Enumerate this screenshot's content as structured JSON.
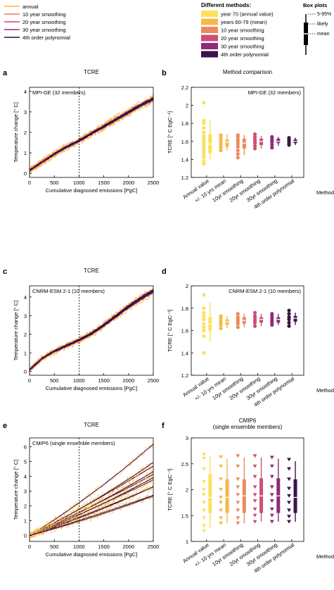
{
  "legend_top": {
    "items": [
      {
        "label": "annual",
        "color": "#f5b942"
      },
      {
        "label": "10 year smoothing",
        "color": "#e8795a"
      },
      {
        "label": "20 year smoothing",
        "color": "#c9467a"
      },
      {
        "label": "30 year smoothing",
        "color": "#8e2a87"
      },
      {
        "label": "4th order polynomial",
        "color": "#2a1145"
      }
    ]
  },
  "legend_methods": {
    "title": "Different methods:",
    "items": [
      {
        "label": "year 70 (annual value)",
        "color": "#fae25a"
      },
      {
        "label": "years 60-79 (mean)",
        "color": "#f4b94a"
      },
      {
        "label": "10 year smoothing",
        "color": "#ec8a5c"
      },
      {
        "label": "20 year smoothing",
        "color": "#cc4f78"
      },
      {
        "label": "30 year smoothing",
        "color": "#8e2b7a"
      },
      {
        "label": "4th order polynomial",
        "color": "#3a1448"
      }
    ]
  },
  "box_legend": {
    "title": "Box plots",
    "range_label": "5-95%",
    "likely_label": "likely",
    "mean_label": "mean"
  },
  "chart_data": [
    {
      "panel": "a",
      "type": "line",
      "title": "TCRE",
      "inset": "MPI-GE (32 members)",
      "xlabel": "Cumulative diagnosed emissions [PgC]",
      "ylabel": "Temperature change [° C]",
      "xlim": [
        0,
        2500
      ],
      "ylim": [
        -0.2,
        4.2
      ],
      "xticks": [
        0,
        500,
        1000,
        1500,
        2000,
        2500
      ],
      "yticks": [
        0,
        1,
        2,
        3,
        4
      ],
      "vline": 1000,
      "x": [
        0,
        250,
        500,
        750,
        1000,
        1250,
        1500,
        1750,
        2000,
        2250,
        2500
      ],
      "series": [
        {
          "name": "4th order polynomial",
          "values": [
            0.15,
            0.55,
            0.95,
            1.3,
            1.6,
            1.95,
            2.3,
            2.65,
            3.0,
            3.35,
            3.65
          ]
        }
      ],
      "spread": 0.18,
      "n_members": 8
    },
    {
      "panel": "b",
      "type": "box",
      "title": "Method comparison",
      "inset": "MPI-GE (32 members)",
      "ylabel": "TCRE [° C EgC⁻¹]",
      "xlabel": "Method",
      "ylim": [
        1.2,
        2.2
      ],
      "yticks": [
        1.2,
        1.4,
        1.6,
        1.8,
        2.0,
        2.2
      ],
      "categories": [
        "Annual value",
        "+/- 10 yrs mean",
        "10yr smoothing",
        "20yr smoothing",
        "30yr smoothing",
        "4th order polynomial"
      ],
      "marker": "circle",
      "boxes": [
        {
          "p5": 1.4,
          "q1": 1.47,
          "mean": 1.57,
          "q3": 1.68,
          "p95": 1.84,
          "points": [
            1.35,
            1.38,
            1.42,
            1.45,
            1.48,
            1.5,
            1.52,
            1.55,
            1.58,
            1.6,
            1.63,
            1.66,
            1.7,
            1.75,
            1.8,
            1.83,
            2.03
          ]
        },
        {
          "p5": 1.5,
          "q1": 1.54,
          "mean": 1.59,
          "q3": 1.62,
          "p95": 1.68,
          "points": [
            1.5,
            1.53,
            1.56,
            1.58,
            1.6,
            1.62,
            1.65,
            1.67
          ]
        },
        {
          "p5": 1.45,
          "q1": 1.52,
          "mean": 1.58,
          "q3": 1.63,
          "p95": 1.67,
          "points": [
            1.42,
            1.46,
            1.5,
            1.54,
            1.57,
            1.6,
            1.62,
            1.65,
            1.67
          ]
        },
        {
          "p5": 1.52,
          "q1": 1.56,
          "mean": 1.6,
          "q3": 1.63,
          "p95": 1.66,
          "points": [
            1.52,
            1.55,
            1.58,
            1.6,
            1.62,
            1.65,
            1.68
          ]
        },
        {
          "p5": 1.55,
          "q1": 1.58,
          "mean": 1.6,
          "q3": 1.63,
          "p95": 1.65,
          "points": [
            1.53,
            1.56,
            1.59,
            1.61,
            1.63,
            1.65
          ]
        },
        {
          "p5": 1.56,
          "q1": 1.58,
          "mean": 1.6,
          "q3": 1.62,
          "p95": 1.64,
          "points": [
            1.56,
            1.58,
            1.6,
            1.62,
            1.64
          ]
        }
      ]
    },
    {
      "panel": "c",
      "type": "line",
      "title": "TCRE",
      "inset": "CNRM-ESM 2-1 (10 members)",
      "xlabel": "Cumulative diagnosed emissions [PgC]",
      "ylabel": "Temperature change [° C]",
      "xlim": [
        0,
        2500
      ],
      "ylim": [
        -0.2,
        4.6
      ],
      "xticks": [
        0,
        500,
        1000,
        1500,
        2000,
        2500
      ],
      "yticks": [
        0,
        1,
        2,
        3,
        4
      ],
      "vline": 1000,
      "x": [
        0,
        250,
        500,
        750,
        1000,
        1250,
        1500,
        1750,
        2000,
        2250,
        2500
      ],
      "series": [
        {
          "name": "4th order polynomial",
          "values": [
            0.1,
            0.7,
            1.1,
            1.4,
            1.7,
            2.05,
            2.5,
            3.0,
            3.5,
            3.95,
            4.35
          ]
        }
      ],
      "spread": 0.22,
      "n_members": 6
    },
    {
      "panel": "d",
      "type": "box",
      "title": "",
      "inset": "CNRM-ESM 2-1 (10 members)",
      "ylabel": "TCRE [° C EgC⁻¹]",
      "xlabel": "Method",
      "ylim": [
        1.2,
        2.0
      ],
      "yticks": [
        1.2,
        1.4,
        1.6,
        1.8,
        2.0
      ],
      "categories": [
        "Annual value",
        "+/- 10 yrs mean",
        "10yr smoothing",
        "20yr smoothing",
        "30yr smoothing",
        "4th order polynomial"
      ],
      "marker": "circle",
      "boxes": [
        {
          "p5": 1.5,
          "q1": 1.6,
          "mean": 1.66,
          "q3": 1.72,
          "p95": 1.85,
          "points": [
            1.4,
            1.55,
            1.6,
            1.63,
            1.66,
            1.7,
            1.73,
            1.76,
            1.8,
            1.92
          ]
        },
        {
          "p5": 1.62,
          "q1": 1.65,
          "mean": 1.68,
          "q3": 1.7,
          "p95": 1.73,
          "points": [
            1.62,
            1.65,
            1.67,
            1.69,
            1.71,
            1.73
          ]
        },
        {
          "p5": 1.63,
          "q1": 1.66,
          "mean": 1.69,
          "q3": 1.72,
          "p95": 1.75,
          "points": [
            1.63,
            1.66,
            1.68,
            1.7,
            1.72,
            1.75
          ]
        },
        {
          "p5": 1.64,
          "q1": 1.67,
          "mean": 1.7,
          "q3": 1.72,
          "p95": 1.75,
          "points": [
            1.64,
            1.67,
            1.69,
            1.71,
            1.73,
            1.76
          ]
        },
        {
          "p5": 1.65,
          "q1": 1.67,
          "mean": 1.7,
          "q3": 1.72,
          "p95": 1.75,
          "points": [
            1.65,
            1.67,
            1.69,
            1.71,
            1.73,
            1.75
          ]
        },
        {
          "p5": 1.65,
          "q1": 1.68,
          "mean": 1.71,
          "q3": 1.73,
          "p95": 1.76,
          "points": [
            1.64,
            1.67,
            1.7,
            1.72,
            1.75,
            1.78
          ]
        }
      ]
    },
    {
      "panel": "e",
      "type": "line",
      "title": "TCRE",
      "inset": "CMIP6   (single ensemble members)",
      "xlabel": "Cumulative diagnosed emissions [PgC]",
      "ylabel": "Temperature change [° C]",
      "xlim": [
        0,
        2500
      ],
      "ylim": [
        -0.4,
        6.6
      ],
      "xticks": [
        0,
        500,
        1000,
        1500,
        2000,
        2500
      ],
      "yticks": [
        0,
        1,
        2,
        3,
        4,
        5,
        6
      ],
      "vline": 1000,
      "x": [
        0,
        250,
        500,
        750,
        1000,
        1250,
        1500,
        1750,
        2000,
        2250,
        2500
      ],
      "models_end": [
        6.0,
        5.0,
        4.8,
        4.4,
        4.2,
        4.0,
        3.8,
        3.5,
        3.2,
        2.9,
        2.6
      ],
      "spread": 0.12
    },
    {
      "panel": "f",
      "type": "box",
      "title": "CMIP6\n(single ensemble members)",
      "inset": "",
      "ylabel": "TCRE [° C EgC⁻¹]",
      "xlabel": "Method",
      "ylim": [
        1.0,
        3.0
      ],
      "yticks": [
        1.0,
        1.5,
        2.0,
        2.5,
        3.0
      ],
      "categories": [
        "Annual value",
        "+/- 10 yrs mean",
        "10yr smoothing",
        "20yr smoothing",
        "30yr smoothing",
        "4th order polynomial"
      ],
      "marker": "triangle",
      "boxes": [
        {
          "p5": 1.25,
          "q1": 1.55,
          "mean": 1.85,
          "q3": 2.3,
          "p95": 2.65,
          "points": [
            1.2,
            1.3,
            1.45,
            1.6,
            1.75,
            1.9,
            2.0,
            2.15,
            2.4,
            2.6,
            2.68
          ]
        },
        {
          "p5": 1.35,
          "q1": 1.55,
          "mean": 1.85,
          "q3": 2.2,
          "p95": 2.6,
          "points": [
            1.35,
            1.45,
            1.6,
            1.75,
            1.85,
            2.0,
            2.2,
            2.45,
            2.63
          ]
        },
        {
          "p5": 1.35,
          "q1": 1.55,
          "mean": 1.88,
          "q3": 2.2,
          "p95": 2.62,
          "points": [
            1.35,
            1.45,
            1.6,
            1.75,
            1.9,
            2.05,
            2.2,
            2.45,
            2.65
          ]
        },
        {
          "p5": 1.38,
          "q1": 1.55,
          "mean": 1.88,
          "q3": 2.22,
          "p95": 2.62,
          "points": [
            1.38,
            1.5,
            1.62,
            1.78,
            1.9,
            2.05,
            2.25,
            2.45,
            2.65
          ]
        },
        {
          "p5": 1.38,
          "q1": 1.55,
          "mean": 1.88,
          "q3": 2.22,
          "p95": 2.6,
          "points": [
            1.38,
            1.5,
            1.62,
            1.78,
            1.9,
            2.05,
            2.25,
            2.45,
            2.62
          ]
        },
        {
          "p5": 1.38,
          "q1": 1.55,
          "mean": 1.85,
          "q3": 2.2,
          "p95": 2.55,
          "points": [
            1.38,
            1.48,
            1.6,
            1.75,
            1.88,
            2.02,
            2.2,
            2.4,
            2.58
          ]
        }
      ]
    }
  ]
}
